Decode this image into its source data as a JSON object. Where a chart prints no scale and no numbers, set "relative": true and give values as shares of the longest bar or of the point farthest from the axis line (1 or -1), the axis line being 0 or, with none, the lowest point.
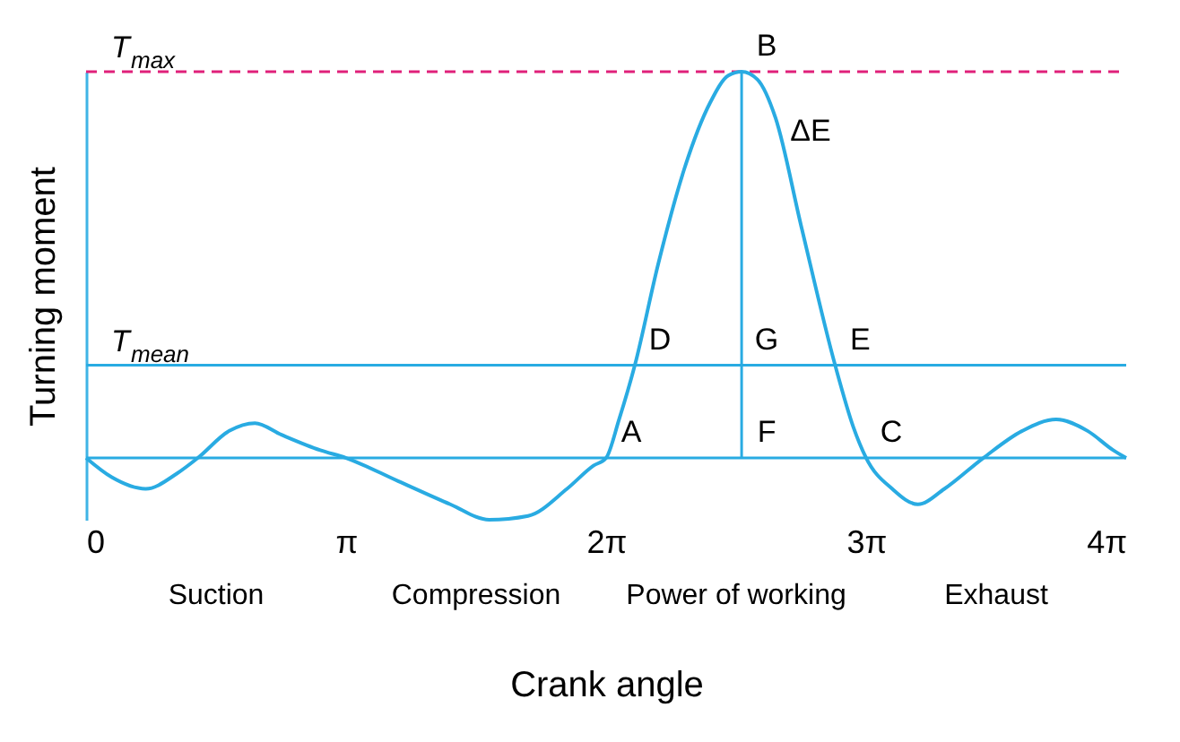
{
  "chart_data": {
    "type": "line",
    "relative": true,
    "xlabel": "Crank angle",
    "ylabel": "Turning moment",
    "x": [
      0,
      0.31,
      0.72,
      1.1,
      1.35,
      1.73,
      2.04,
      2.36,
      2.83,
      3.1416,
      3.77,
      4.4,
      4.87,
      5.34,
      5.81,
      6.13,
      6.2832,
      6.44,
      6.63,
      6.91,
      7.23,
      7.54,
      7.76,
      7.92,
      8.11,
      8.33,
      8.64,
      9.05,
      9.27,
      9.4248,
      9.74,
      10.05,
      10.37,
      10.84,
      11.31,
      11.72,
      12.1,
      12.41,
      12.5664
    ],
    "series": [
      {
        "color": "#29abe2",
        "values": [
          0,
          -0.05,
          -0.08,
          -0.04,
          0,
          0.07,
          0.09,
          0.06,
          0.02,
          0,
          -0.06,
          -0.12,
          -0.16,
          -0.15,
          -0.08,
          -0.02,
          0,
          0.1,
          0.24,
          0.5,
          0.75,
          0.92,
          0.99,
          1,
          0.98,
          0.88,
          0.6,
          0.24,
          0.08,
          0,
          -0.08,
          -0.12,
          -0.08,
          0,
          0.07,
          0.1,
          0.07,
          0.02,
          0
        ]
      }
    ],
    "xlim": [
      0,
      12.5664
    ],
    "xticks": [
      0,
      {
        "value": 3.1416,
        "label": "π"
      },
      {
        "value": 6.2832,
        "label": "2π"
      },
      {
        "value": 9.4248,
        "label": "3π"
      },
      {
        "value": 12.5664,
        "label": "4π"
      }
    ],
    "grid": false,
    "marker": "none",
    "line_style": "solid",
    "ref_lines": [
      {
        "axis": "y",
        "value": 1,
        "label": "T$_{max}$",
        "color": "#e0207a",
        "line_style": "dashed"
      },
      {
        "axis": "y",
        "value": 0.24,
        "label": "T$_{mean}$",
        "color": "#29abe2"
      },
      {
        "axis": "y",
        "value": 0,
        "color": "#29abe2"
      },
      {
        "axis": "x",
        "value": 7.92,
        "color": "#29abe2"
      }
    ],
    "annotations": [
      {
        "text": "A",
        "x": 6.2832,
        "y": 0
      },
      {
        "text": "B",
        "x": 7.92,
        "y": 1
      },
      {
        "text": "C",
        "x": 9.4248,
        "y": 0
      },
      {
        "text": "D",
        "x": 6.63,
        "y": 0.24
      },
      {
        "text": "E",
        "x": 9.05,
        "y": 0.24
      },
      {
        "text": "F",
        "x": 7.92,
        "y": 0
      },
      {
        "text": "G",
        "x": 7.92,
        "y": 0.24
      },
      {
        "text": "ΔE",
        "x": 8.45,
        "y": 0.78
      },
      "Suction",
      "Compression",
      "Power of working",
      "Exhaust"
    ]
  }
}
